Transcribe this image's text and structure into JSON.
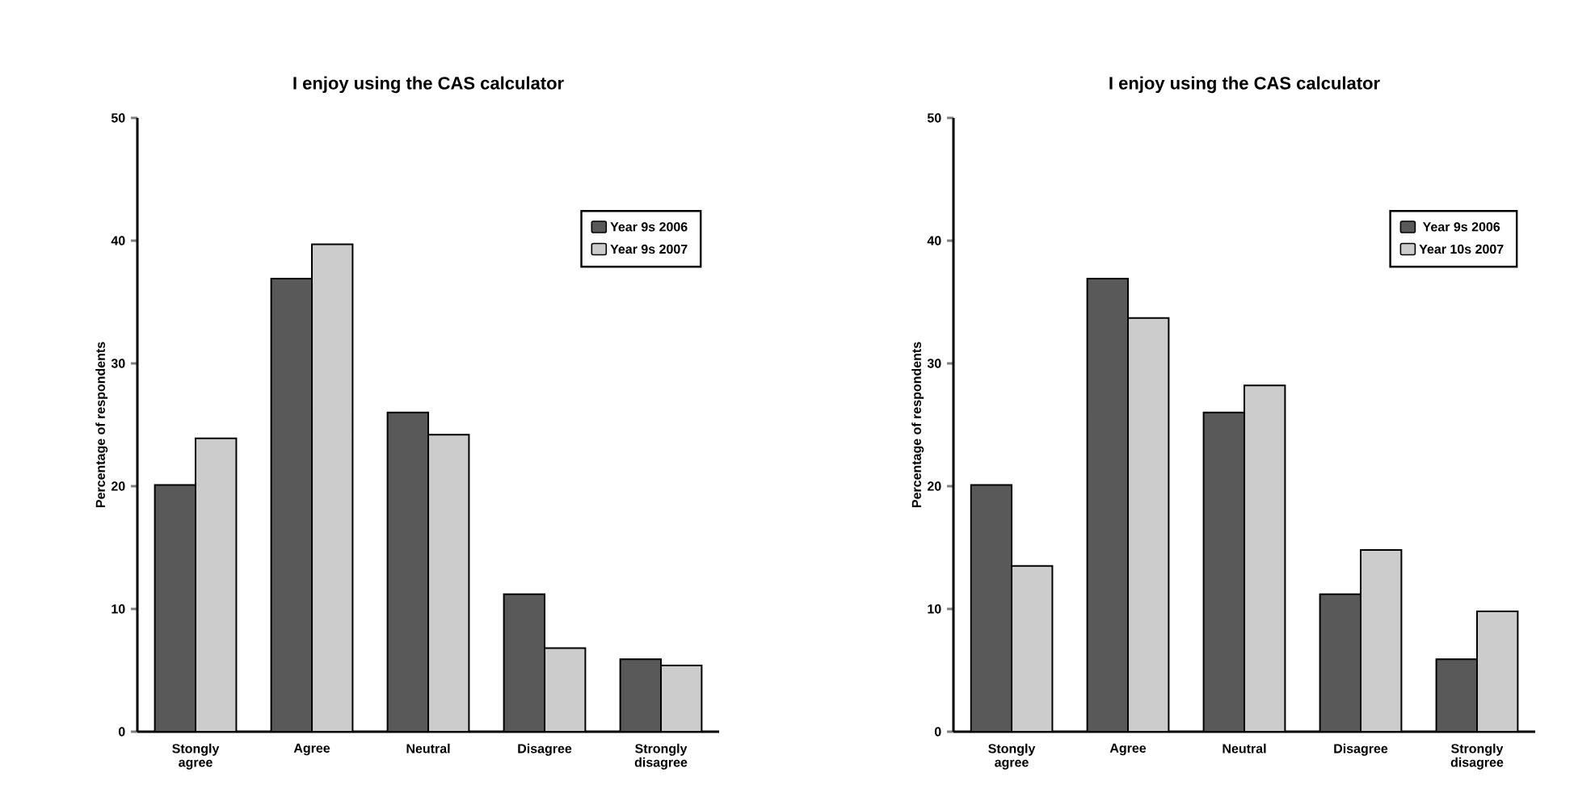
{
  "chart_data": [
    {
      "type": "bar",
      "title": "I enjoy using the CAS calculator",
      "ylabel": "Percentage of respondents",
      "categories": [
        "Stongly agree",
        "Agree",
        "Neutral",
        "Disagree",
        "Strongly disagree"
      ],
      "series": [
        {
          "name": "Year 9s 2006",
          "color": "#595959",
          "values": [
            20.1,
            36.9,
            26.0,
            11.2,
            5.9
          ]
        },
        {
          "name": "Year 9s 2007",
          "color": "#cccccc",
          "values": [
            23.9,
            39.7,
            24.2,
            6.8,
            5.4
          ]
        }
      ],
      "ylim": [
        0,
        50
      ],
      "yticks": [
        0,
        10,
        20,
        30,
        40,
        50
      ],
      "grid": false,
      "legend": "top right"
    },
    {
      "type": "bar",
      "title": "I enjoy using the CAS calculator",
      "ylabel": "Percentage of respondents",
      "categories": [
        "Stongly agree",
        "Agree",
        "Neutral",
        "Disagree",
        "Strongly disagree"
      ],
      "series": [
        {
          "name": "Year 9s 2006",
          "color": "#595959",
          "values": [
            20.1,
            36.9,
            26.0,
            11.2,
            5.9
          ]
        },
        {
          "name": "Year 10s 2007",
          "color": "#cccccc",
          "values": [
            13.5,
            33.7,
            28.2,
            14.8,
            9.8
          ]
        }
      ],
      "ylim": [
        0,
        50
      ],
      "yticks": [
        0,
        10,
        20,
        30,
        40,
        50
      ],
      "grid": false,
      "legend": "top right"
    }
  ]
}
